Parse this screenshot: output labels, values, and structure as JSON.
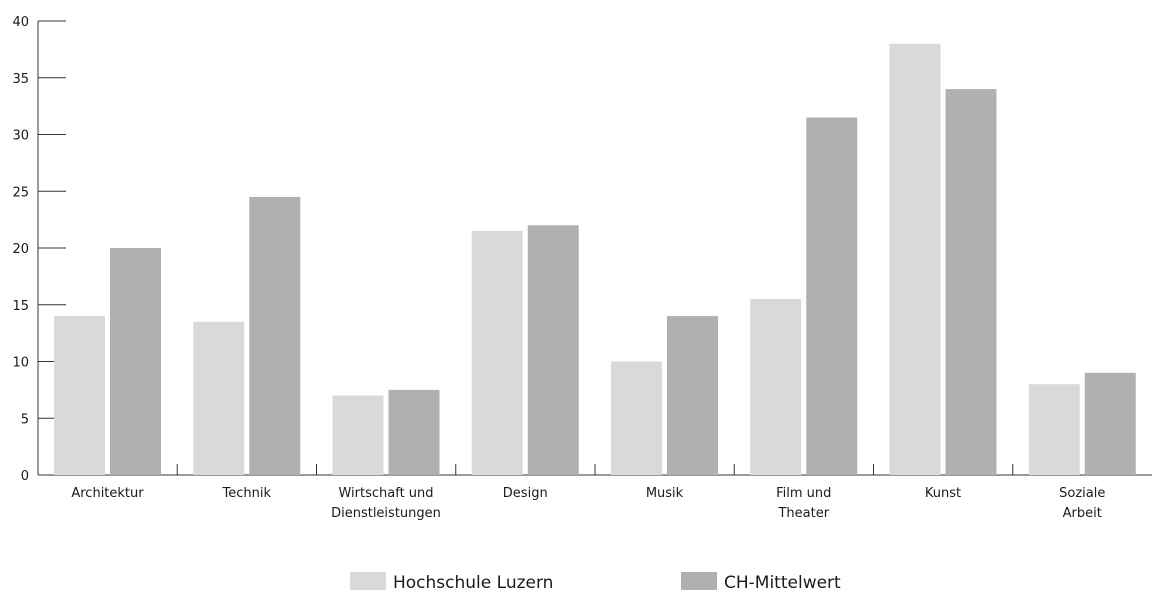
{
  "chart_data": {
    "type": "bar",
    "categories": [
      [
        "Architektur"
      ],
      [
        "Technik"
      ],
      [
        "Wirtschaft und",
        "Dienstleistungen"
      ],
      [
        "Design"
      ],
      [
        "Musik"
      ],
      [
        "Film und",
        "Theater"
      ],
      [
        "Kunst"
      ],
      [
        "Soziale",
        "Arbeit"
      ]
    ],
    "series": [
      {
        "name": "Hochschule Luzern",
        "color": "#d9d9d9",
        "values": [
          14,
          13.5,
          7,
          21.5,
          10,
          15.5,
          38,
          8
        ]
      },
      {
        "name": "CH-Mittelwert",
        "color": "#b0b0b0",
        "values": [
          20,
          24.5,
          7.5,
          22,
          14,
          31.5,
          34,
          9
        ]
      }
    ],
    "ylim": [
      0,
      40
    ],
    "yticks": [
      0,
      5,
      10,
      15,
      20,
      25,
      30,
      35,
      40
    ],
    "grid": false,
    "legend_position": "bottom-center",
    "xlabel": "",
    "ylabel": "",
    "title": ""
  }
}
